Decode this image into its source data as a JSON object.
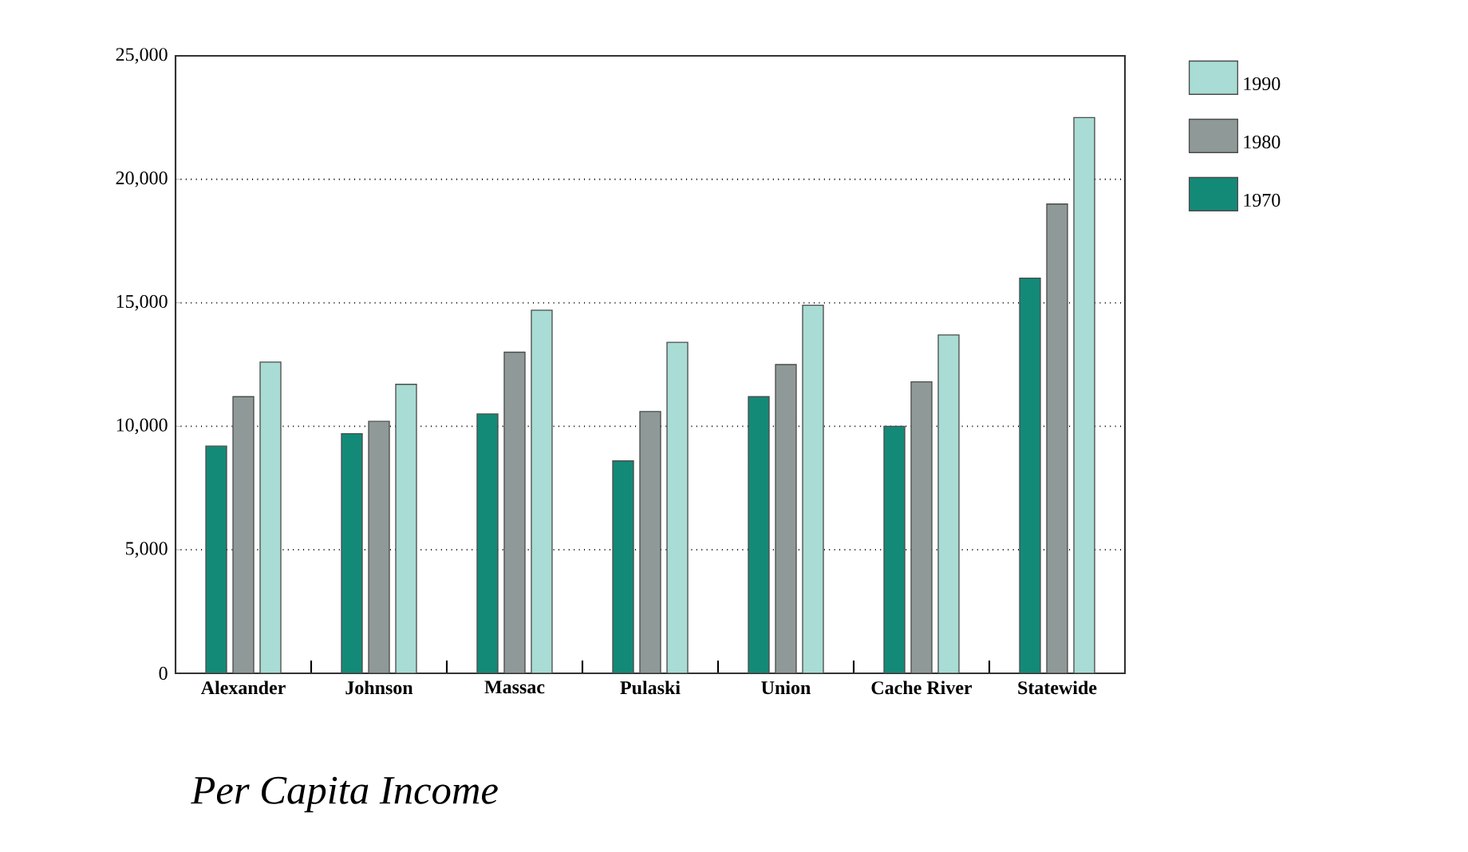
{
  "chart_data": {
    "type": "bar",
    "title": "Per Capita Income",
    "categories": [
      "Alexander",
      "Johnson",
      "Massac",
      "Pulaski",
      "Union",
      "Cache River",
      "Statewide"
    ],
    "series": [
      {
        "name": "1970",
        "color": "#138a78",
        "values": [
          9200,
          9700,
          10500,
          8600,
          11200,
          10000,
          16000
        ]
      },
      {
        "name": "1980",
        "color": "#8f9a98",
        "values": [
          11200,
          10200,
          13000,
          10600,
          12500,
          11800,
          19000
        ]
      },
      {
        "name": "1990",
        "color": "#a8dcd4",
        "values": [
          12600,
          11700,
          14700,
          13400,
          14900,
          13700,
          22500
        ]
      }
    ],
    "ylim": [
      0,
      25000
    ],
    "yticks": [
      0,
      {
        "value": 5000,
        "label": "5,000"
      },
      {
        "value": 10000,
        "label": "10,000"
      },
      {
        "value": 15000,
        "label": "15,000"
      },
      {
        "value": 20000,
        "label": "20,000"
      },
      {
        "value": 25000,
        "label": "25,000"
      }
    ],
    "grid": "y",
    "legend": "top right"
  }
}
